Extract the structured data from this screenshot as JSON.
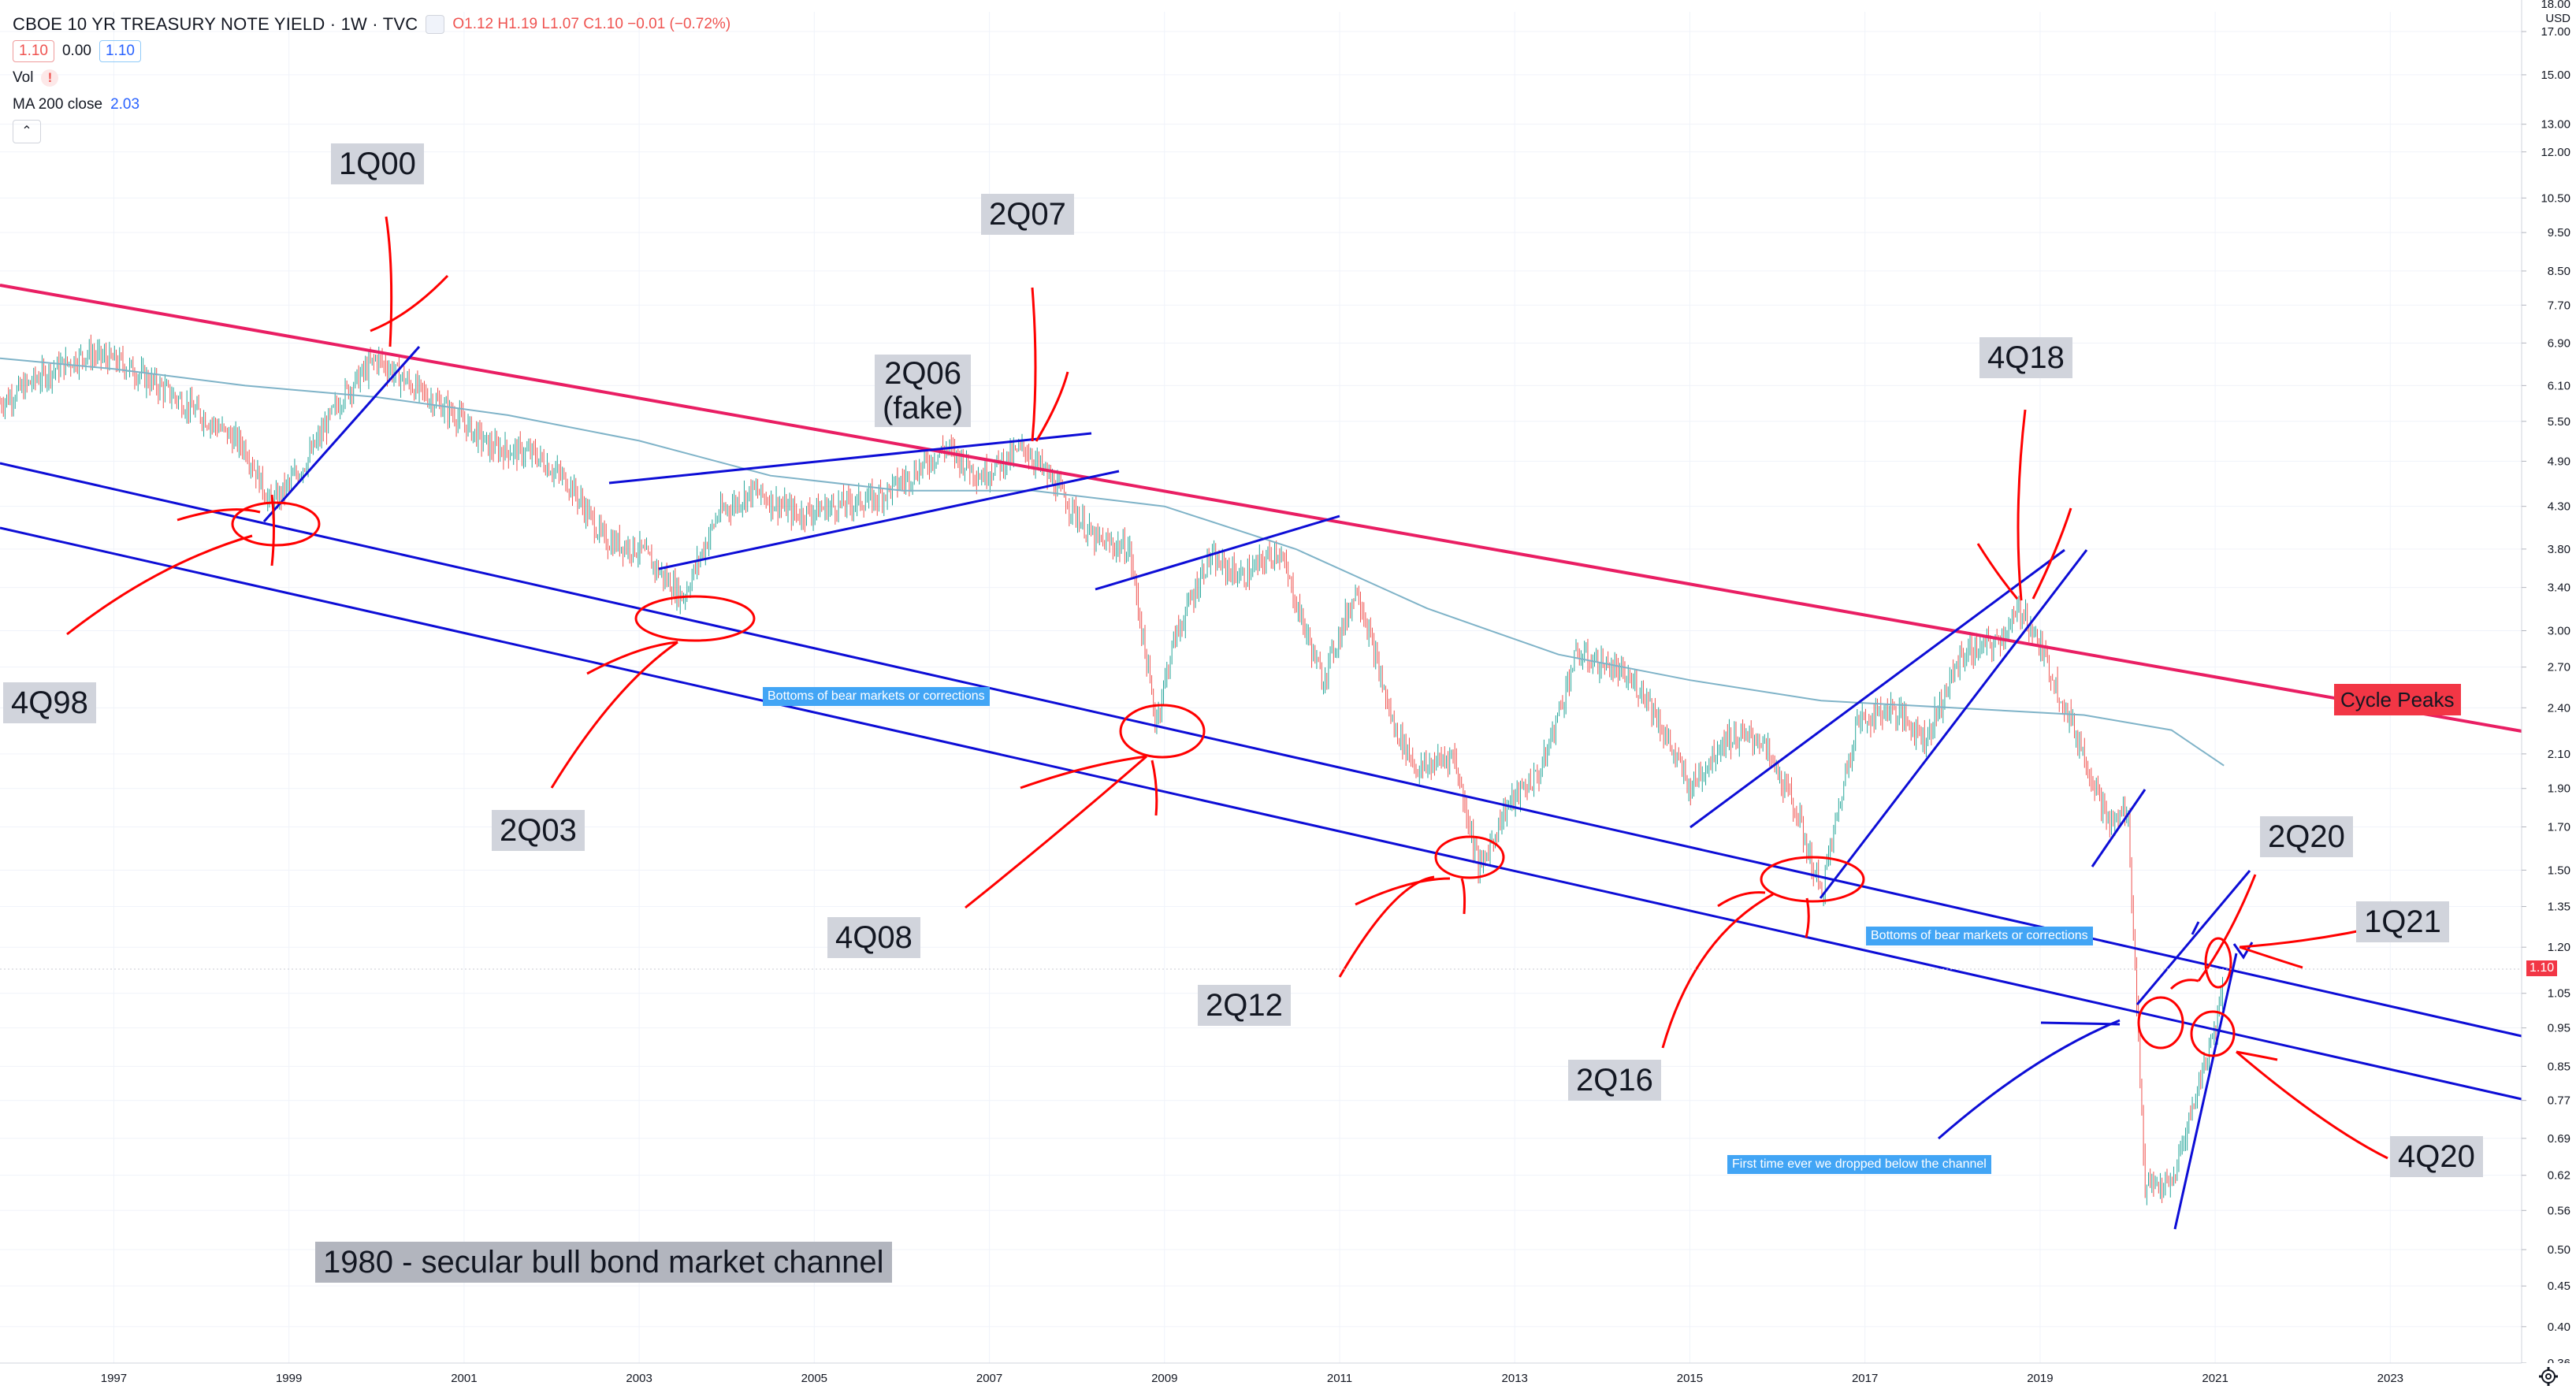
{
  "header": {
    "title": "CBOE 10 YR TREASURY NOTE YIELD · 1W · TVC",
    "ohlc": "O1.12 H1.19 L1.07 C1.10 −0.01 (−0.72%)",
    "bid": "1.10",
    "spread": "0.00",
    "ask": "1.10",
    "vol_label": "Vol",
    "vol_warning": "!",
    "ma_label": "MA 200 close",
    "ma_value": "2.03"
  },
  "axis": {
    "currency": "USD",
    "top_partial": "18.00"
  },
  "annotations": {
    "q1_00": "1Q00",
    "q2_07": "2Q07",
    "q2_06_a": "2Q06",
    "q2_06_b": "(fake)",
    "q4_18": "4Q18",
    "q4_98": "4Q98",
    "q2_03": "2Q03",
    "q4_08": "4Q08",
    "q2_12": "2Q12",
    "q2_16": "2Q16",
    "q2_20": "2Q20",
    "q1_21": "1Q21",
    "q4_20": "4Q20",
    "channel_title": "1980 - secular bull bond market channel",
    "bottoms_1": "Bottoms of bear markets or corrections",
    "bottoms_2": "Bottoms of bear markets or corrections",
    "first_time": "First time ever we dropped below the channel",
    "cycle_peaks": "Cycle Peaks"
  },
  "price_tag": "1.10",
  "colors": {
    "up": "#26a69a",
    "down": "#ef5350",
    "ma": "#7fb3c8",
    "peak_line": "#e91e63",
    "channel": "#0d0dd6",
    "ink_red": "#ff0000",
    "ink_blue": "#1a1adb"
  },
  "chart_data": {
    "type": "line",
    "title": "CBOE 10 YR TREASURY NOTE YIELD · 1W · TVC",
    "ylabel": "",
    "y_scale": "log",
    "ylim": [
      0.36,
      18.0
    ],
    "xlim": [
      1995.7,
      2024.5
    ],
    "x_ticks": [
      "1997",
      "1999",
      "2001",
      "2003",
      "2005",
      "2007",
      "2009",
      "2011",
      "2013",
      "2015",
      "2017",
      "2019",
      "2021",
      "2023"
    ],
    "y_ticks": [
      "17.00",
      "15.00",
      "13.00",
      "12.00",
      "10.50",
      "9.50",
      "8.50",
      "7.70",
      "6.90",
      "6.10",
      "5.50",
      "4.90",
      "4.30",
      "3.80",
      "3.40",
      "3.00",
      "2.70",
      "2.40",
      "2.10",
      "1.90",
      "1.70",
      "1.50",
      "1.35",
      "1.20",
      "1.05",
      "0.95",
      "0.85",
      "0.77",
      "0.69",
      "0.62",
      "0.56",
      "0.50",
      "0.45",
      "0.40",
      "0.36"
    ],
    "series": [
      {
        "name": "CBOE 10 YR TREASURY NOTE YIELD",
        "x": [
          1995.7,
          1996.2,
          1996.7,
          1997.1,
          1997.6,
          1998.1,
          1998.5,
          1998.8,
          1999.2,
          1999.6,
          2000.0,
          2000.4,
          2000.9,
          2001.3,
          2001.8,
          2002.2,
          2002.6,
          2003.0,
          2003.5,
          2003.9,
          2004.3,
          2004.8,
          2005.2,
          2005.7,
          2006.1,
          2006.5,
          2006.9,
          2007.4,
          2007.8,
          2008.2,
          2008.6,
          2008.9,
          2009.1,
          2009.5,
          2009.9,
          2010.3,
          2010.8,
          2011.2,
          2011.6,
          2011.9,
          2012.3,
          2012.6,
          2012.9,
          2013.3,
          2013.7,
          2014.1,
          2014.5,
          2015.0,
          2015.4,
          2015.8,
          2016.2,
          2016.5,
          2016.9,
          2017.3,
          2017.7,
          2018.1,
          2018.5,
          2018.8,
          2019.1,
          2019.5,
          2019.8,
          2020.0,
          2020.2,
          2020.5,
          2020.8,
          2021.0,
          2021.1
        ],
        "values": [
          5.8,
          6.3,
          6.7,
          6.5,
          6.0,
          5.5,
          5.1,
          4.3,
          4.9,
          5.9,
          6.6,
          6.1,
          5.6,
          5.1,
          5.0,
          4.6,
          3.9,
          3.8,
          3.3,
          4.2,
          4.5,
          4.2,
          4.3,
          4.4,
          4.7,
          5.1,
          4.7,
          5.1,
          4.5,
          3.9,
          3.8,
          2.3,
          2.9,
          3.7,
          3.5,
          3.8,
          2.6,
          3.4,
          2.3,
          2.0,
          2.1,
          1.5,
          1.8,
          2.0,
          2.8,
          2.7,
          2.5,
          1.9,
          2.2,
          2.2,
          1.8,
          1.4,
          2.3,
          2.4,
          2.2,
          2.8,
          2.9,
          3.2,
          2.7,
          2.1,
          1.7,
          1.8,
          0.6,
          0.6,
          0.8,
          0.95,
          1.1
        ]
      },
      {
        "name": "MA 200 close",
        "x": [
          1995.7,
          1997.0,
          1998.5,
          2000.0,
          2001.5,
          2003.0,
          2004.5,
          2006.0,
          2007.5,
          2009.0,
          2010.5,
          2012.0,
          2013.5,
          2015.0,
          2016.5,
          2018.0,
          2019.5,
          2020.5,
          2021.1
        ],
        "values": [
          6.6,
          6.4,
          6.1,
          5.9,
          5.6,
          5.2,
          4.7,
          4.5,
          4.5,
          4.3,
          3.8,
          3.2,
          2.8,
          2.6,
          2.45,
          2.4,
          2.35,
          2.25,
          2.03
        ]
      }
    ]
  }
}
